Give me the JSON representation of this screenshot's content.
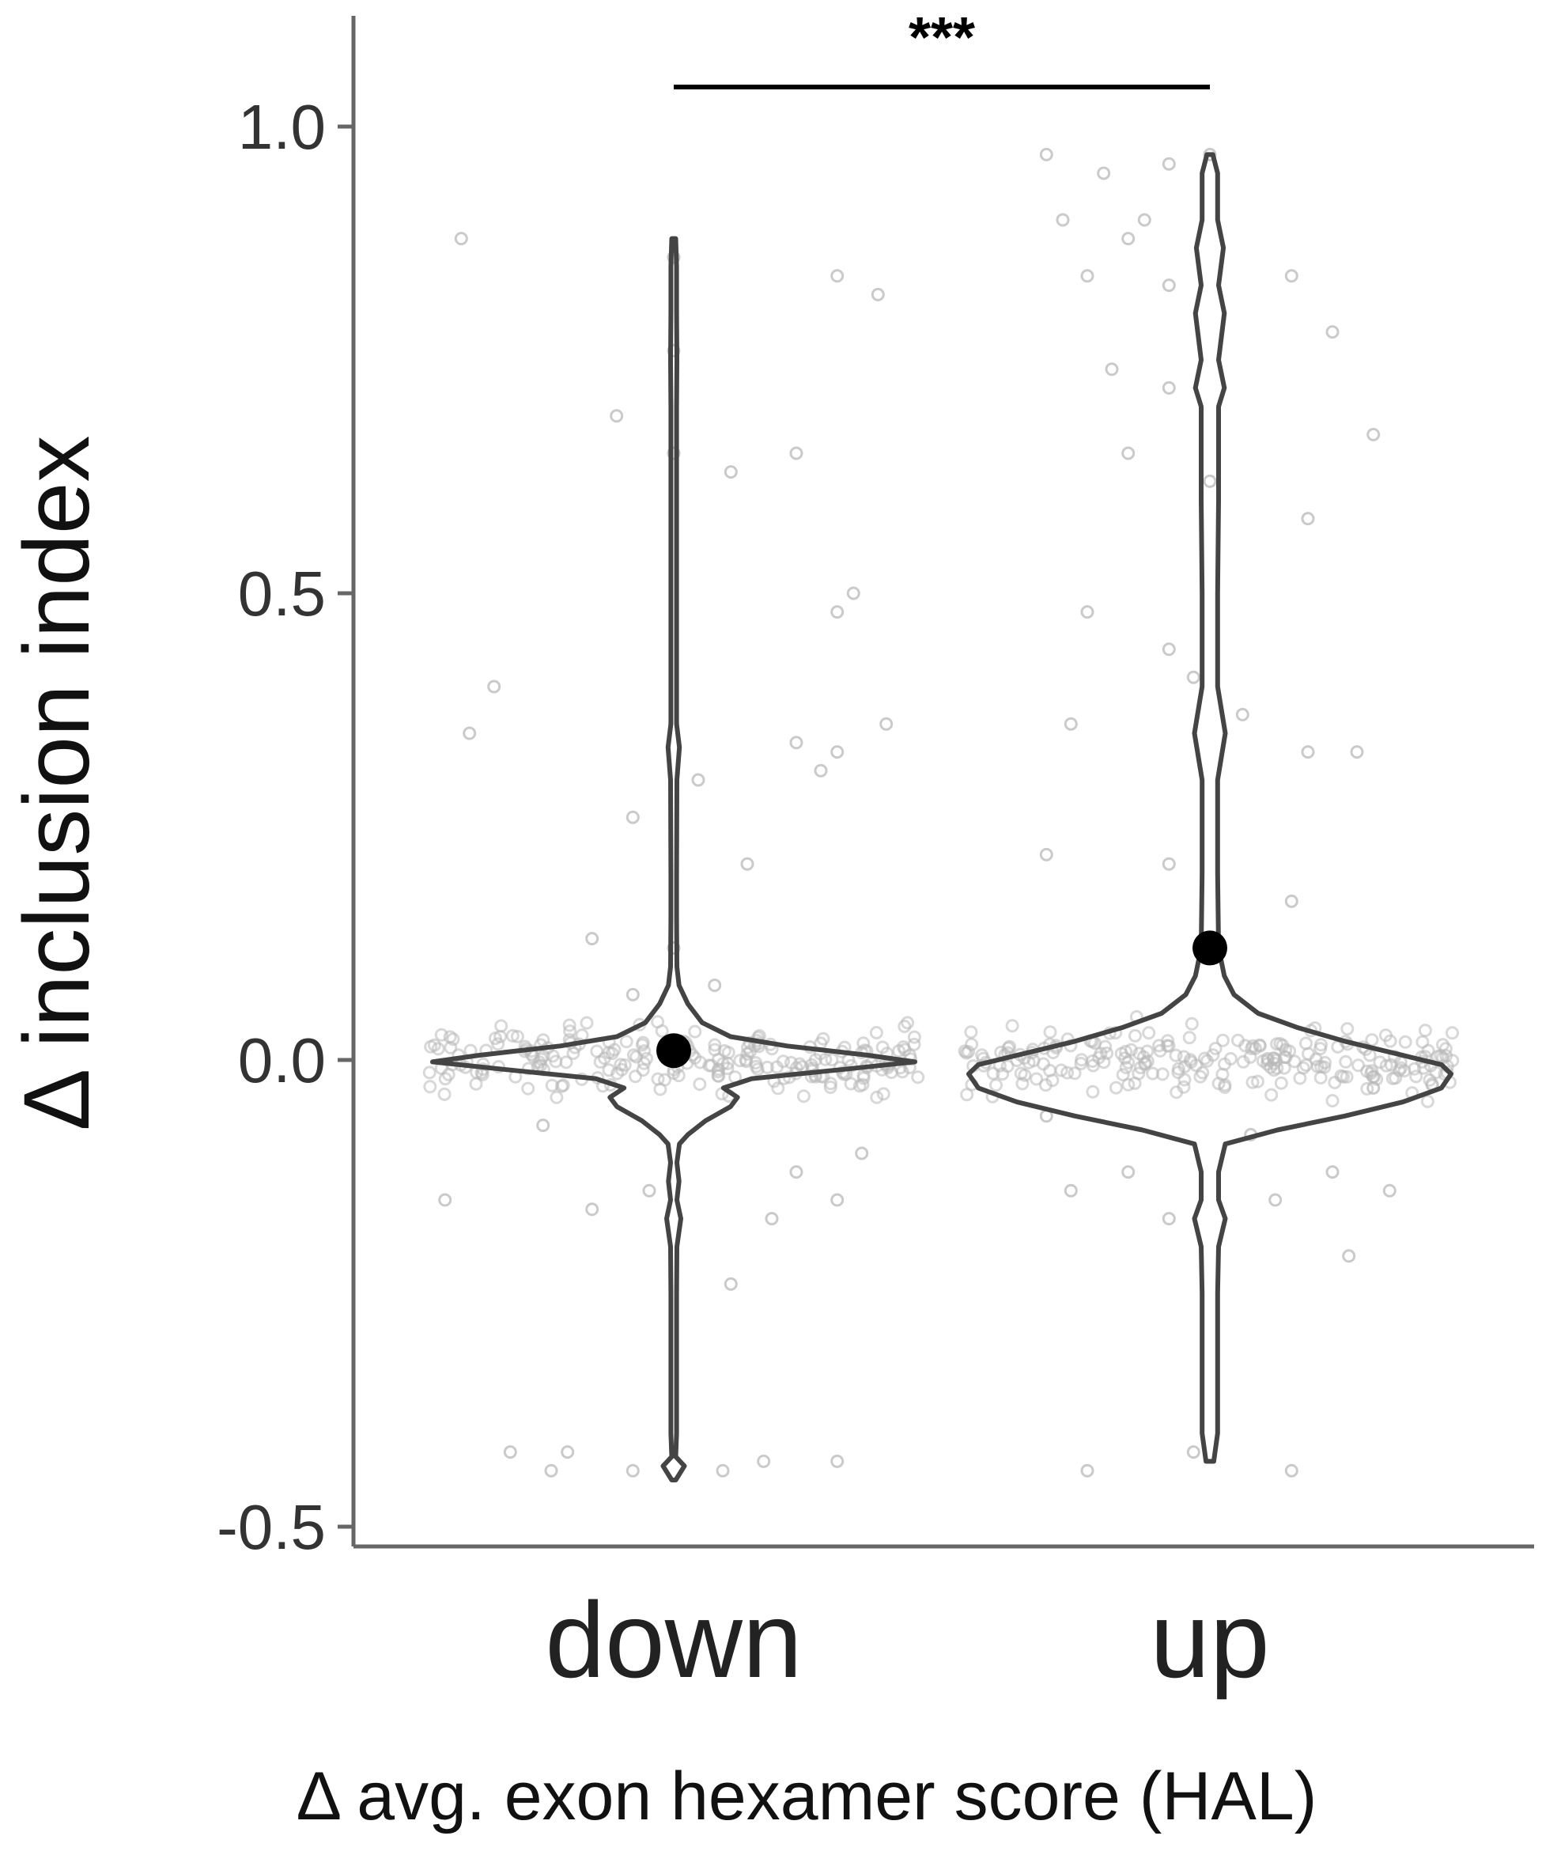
{
  "chart_data": {
    "type": "violin",
    "title": "",
    "xlabel": "Δ avg. exon hexamer score (HAL)",
    "ylabel": "Δ inclusion index",
    "ylim": [
      -0.52,
      1.12
    ],
    "yticks": [
      -0.5,
      0.0,
      0.5,
      1.0
    ],
    "ytick_labels": [
      "-0.5",
      "0.0",
      "0.5",
      "1.0"
    ],
    "categories": [
      "down",
      "up"
    ],
    "means": [
      0.01,
      0.12
    ],
    "significance": "***",
    "colors": {
      "violin_stroke": "#444444",
      "point_stroke": "#b8b8b8",
      "mean_fill": "#000000",
      "axis": "#666666"
    },
    "density": [
      [
        [
          -0.45,
          0.3
        ],
        [
          -0.435,
          3
        ],
        [
          -0.425,
          0.3
        ],
        [
          -0.4,
          0.8
        ],
        [
          -0.3,
          0.8
        ],
        [
          -0.25,
          0.8
        ],
        [
          -0.2,
          0.9
        ],
        [
          -0.17,
          2
        ],
        [
          -0.15,
          0.9
        ],
        [
          -0.13,
          1.5
        ],
        [
          -0.11,
          0.9
        ],
        [
          -0.09,
          1.6
        ],
        [
          -0.08,
          4
        ],
        [
          -0.065,
          9
        ],
        [
          -0.05,
          16
        ],
        [
          -0.04,
          18
        ],
        [
          -0.03,
          14
        ],
        [
          -0.02,
          22
        ],
        [
          -0.01,
          48
        ],
        [
          -0.002,
          68
        ],
        [
          0.005,
          55
        ],
        [
          0.015,
          32
        ],
        [
          0.025,
          16
        ],
        [
          0.04,
          8
        ],
        [
          0.06,
          4
        ],
        [
          0.08,
          1.5
        ],
        [
          0.1,
          0.9
        ],
        [
          0.15,
          0.8
        ],
        [
          0.2,
          0.8
        ],
        [
          0.3,
          0.9
        ],
        [
          0.335,
          1.6
        ],
        [
          0.36,
          0.8
        ],
        [
          0.4,
          0.8
        ],
        [
          0.5,
          0.8
        ],
        [
          0.6,
          0.8
        ],
        [
          0.7,
          0.8
        ],
        [
          0.75,
          0.9
        ],
        [
          0.8,
          0.8
        ],
        [
          0.85,
          0.8
        ],
        [
          0.88,
          0.3
        ]
      ],
      [
        [
          -0.43,
          0.4
        ],
        [
          -0.4,
          0.8
        ],
        [
          -0.3,
          0.8
        ],
        [
          -0.25,
          0.8
        ],
        [
          -0.2,
          0.9
        ],
        [
          -0.17,
          1.6
        ],
        [
          -0.15,
          0.9
        ],
        [
          -0.12,
          0.9
        ],
        [
          -0.09,
          1.6
        ],
        [
          -0.075,
          7
        ],
        [
          -0.06,
          14
        ],
        [
          -0.045,
          20
        ],
        [
          -0.03,
          24
        ],
        [
          -0.015,
          25
        ],
        [
          -0.005,
          24
        ],
        [
          0.005,
          20
        ],
        [
          0.02,
          14
        ],
        [
          0.035,
          9
        ],
        [
          0.05,
          5
        ],
        [
          0.07,
          2.5
        ],
        [
          0.09,
          1.5
        ],
        [
          0.12,
          0.9
        ],
        [
          0.2,
          0.8
        ],
        [
          0.3,
          0.8
        ],
        [
          0.35,
          1.6
        ],
        [
          0.4,
          0.8
        ],
        [
          0.5,
          0.8
        ],
        [
          0.6,
          0.9
        ],
        [
          0.7,
          0.9
        ],
        [
          0.72,
          1.5
        ],
        [
          0.75,
          0.9
        ],
        [
          0.8,
          1.5
        ],
        [
          0.83,
          0.9
        ],
        [
          0.87,
          1.4
        ],
        [
          0.9,
          0.8
        ],
        [
          0.95,
          0.8
        ],
        [
          0.97,
          0.3
        ]
      ]
    ],
    "points": [
      [
        [
          -0.26,
          0.88
        ],
        [
          -0.25,
          0.35
        ],
        [
          -0.22,
          0.4
        ],
        [
          0.0,
          0.86
        ],
        [
          0.0,
          0.76
        ],
        [
          0.0,
          0.65
        ],
        [
          0.2,
          0.84
        ],
        [
          0.2,
          0.33
        ],
        [
          0.22,
          0.5
        ],
        [
          0.2,
          0.48
        ],
        [
          0.25,
          0.82
        ],
        [
          0.26,
          0.36
        ],
        [
          -0.07,
          0.69
        ],
        [
          0.07,
          0.63
        ],
        [
          0.15,
          0.65
        ],
        [
          -0.05,
          0.26
        ],
        [
          0.03,
          0.3
        ],
        [
          0.09,
          0.21
        ],
        [
          0.15,
          0.34
        ],
        [
          0.18,
          0.31
        ],
        [
          -0.1,
          0.13
        ],
        [
          0.0,
          0.12
        ],
        [
          -0.05,
          0.07
        ],
        [
          0.05,
          0.08
        ],
        [
          -0.2,
          -0.42
        ],
        [
          -0.15,
          -0.44
        ],
        [
          -0.13,
          -0.42
        ],
        [
          -0.05,
          -0.44
        ],
        [
          0.06,
          -0.44
        ],
        [
          0.11,
          -0.43
        ],
        [
          0.2,
          -0.43
        ],
        [
          0.07,
          -0.24
        ],
        [
          -0.28,
          -0.15
        ],
        [
          -0.1,
          -0.16
        ],
        [
          0.12,
          -0.17
        ],
        [
          0.2,
          -0.15
        ],
        [
          -0.16,
          -0.07
        ],
        [
          0.23,
          -0.1
        ],
        [
          -0.03,
          -0.14
        ],
        [
          0.15,
          -0.12
        ]
      ],
      [
        [
          -0.2,
          0.97
        ],
        [
          -0.13,
          0.95
        ],
        [
          -0.05,
          0.96
        ],
        [
          0.0,
          0.97
        ],
        [
          -0.18,
          0.9
        ],
        [
          -0.1,
          0.88
        ],
        [
          -0.08,
          0.9
        ],
        [
          -0.15,
          0.84
        ],
        [
          -0.05,
          0.83
        ],
        [
          0.1,
          0.84
        ],
        [
          0.15,
          0.78
        ],
        [
          -0.12,
          0.74
        ],
        [
          -0.05,
          0.72
        ],
        [
          0.0,
          0.62
        ],
        [
          -0.1,
          0.65
        ],
        [
          0.12,
          0.58
        ],
        [
          0.2,
          0.67
        ],
        [
          -0.15,
          0.48
        ],
        [
          -0.05,
          0.44
        ],
        [
          -0.02,
          0.41
        ],
        [
          -0.17,
          0.36
        ],
        [
          0.04,
          0.37
        ],
        [
          0.12,
          0.33
        ],
        [
          0.18,
          0.33
        ],
        [
          -0.2,
          0.22
        ],
        [
          -0.05,
          0.21
        ],
        [
          0.1,
          0.17
        ],
        [
          -0.15,
          -0.44
        ],
        [
          -0.02,
          -0.42
        ],
        [
          0.1,
          -0.44
        ],
        [
          -0.17,
          -0.14
        ],
        [
          0.08,
          -0.15
        ],
        [
          0.15,
          -0.12
        ],
        [
          -0.1,
          -0.12
        ],
        [
          0.17,
          -0.21
        ],
        [
          0.22,
          -0.14
        ],
        [
          -0.05,
          -0.17
        ],
        [
          -0.2,
          -0.06
        ],
        [
          0.05,
          -0.08
        ],
        [
          0.2,
          -0.03
        ]
      ]
    ]
  }
}
